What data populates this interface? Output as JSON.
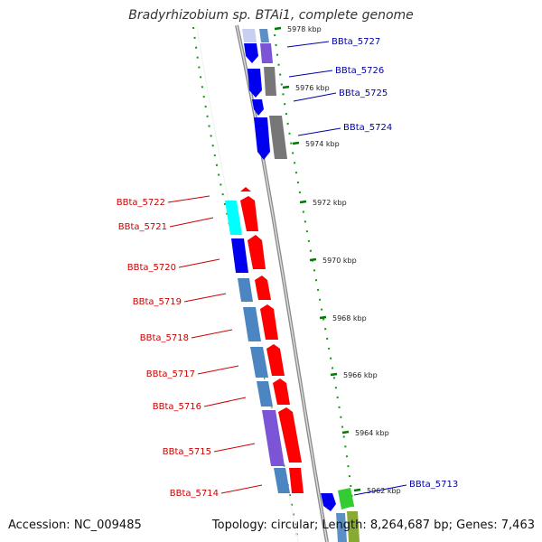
{
  "title": "Bradyrhizobium sp. BTAi1, complete genome",
  "accession": "Accession: NC_009485",
  "topology": "Topology: circular; Length: 8,264,687 bp; Genes: 7,463",
  "colors": {
    "reverse_label": "#cc0000",
    "forward_label": "#0000aa",
    "backbone": "#999999",
    "ticks": "#008000"
  },
  "scale_marks": [
    "5978 kbp",
    "5976 kbp",
    "5974 kbp",
    "5972 kbp",
    "5970 kbp",
    "5968 kbp",
    "5966 kbp",
    "5964 kbp",
    "5962 kbp"
  ],
  "genes": [
    {
      "label": "BBta_5727",
      "strand": "plus"
    },
    {
      "label": "BBta_5726",
      "strand": "plus"
    },
    {
      "label": "BBta_5725",
      "strand": "plus"
    },
    {
      "label": "BBta_5724",
      "strand": "plus"
    },
    {
      "label": "BBta_5722",
      "strand": "minus"
    },
    {
      "label": "BBta_5721",
      "strand": "minus"
    },
    {
      "label": "BBta_5720",
      "strand": "minus"
    },
    {
      "label": "BBta_5719",
      "strand": "minus"
    },
    {
      "label": "BBta_5718",
      "strand": "minus"
    },
    {
      "label": "BBta_5717",
      "strand": "minus"
    },
    {
      "label": "BBta_5716",
      "strand": "minus"
    },
    {
      "label": "BBta_5715",
      "strand": "minus"
    },
    {
      "label": "BBta_5714",
      "strand": "minus"
    },
    {
      "label": "BBta_5713",
      "strand": "plus"
    }
  ]
}
